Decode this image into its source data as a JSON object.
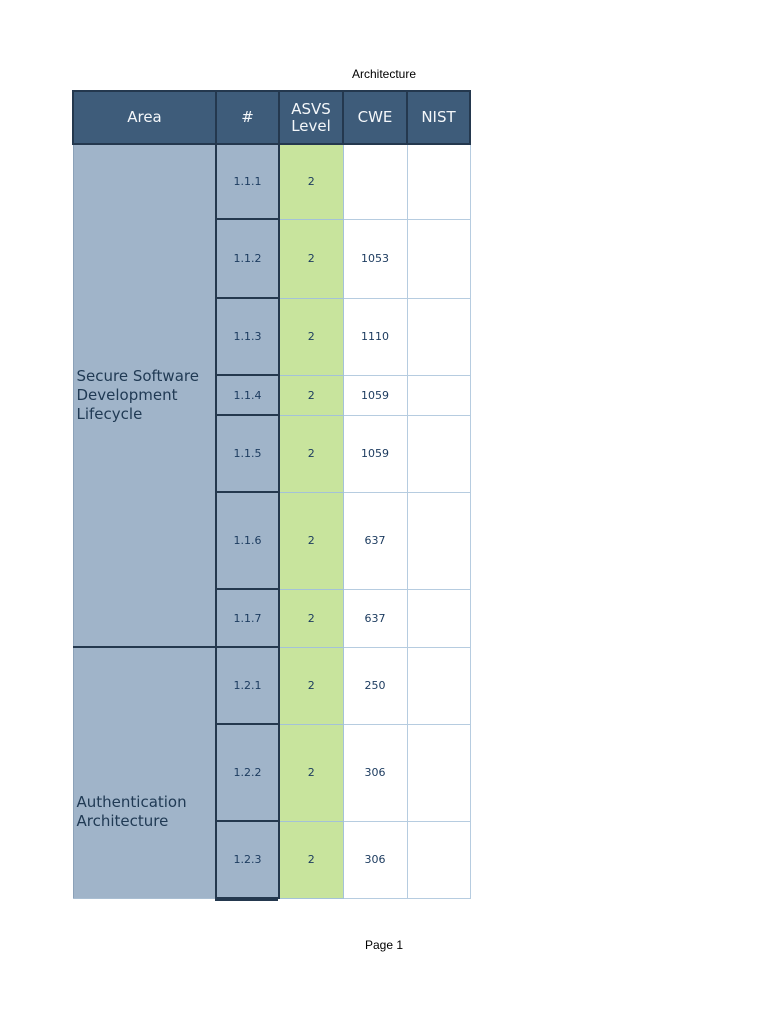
{
  "page": {
    "title": "Architecture",
    "footer": "Page 1"
  },
  "table": {
    "columns": [
      "Area",
      "#",
      "ASVS Level",
      "CWE",
      "NIST"
    ],
    "sections": [
      {
        "area": "Secure Software Development Lifecycle",
        "rows": [
          {
            "num": "1.1.1",
            "asvs_level": "2",
            "cwe": "",
            "nist": ""
          },
          {
            "num": "1.1.2",
            "asvs_level": "2",
            "cwe": "1053",
            "nist": ""
          },
          {
            "num": "1.1.3",
            "asvs_level": "2",
            "cwe": "1110",
            "nist": ""
          },
          {
            "num": "1.1.4",
            "asvs_level": "2",
            "cwe": "1059",
            "nist": ""
          },
          {
            "num": "1.1.5",
            "asvs_level": "2",
            "cwe": "1059",
            "nist": ""
          },
          {
            "num": "1.1.6",
            "asvs_level": "2",
            "cwe": "637",
            "nist": ""
          },
          {
            "num": "1.1.7",
            "asvs_level": "2",
            "cwe": "637",
            "nist": ""
          }
        ]
      },
      {
        "area": "Authentication Architecture",
        "rows": [
          {
            "num": "1.2.1",
            "asvs_level": "2",
            "cwe": "250",
            "nist": ""
          },
          {
            "num": "1.2.2",
            "asvs_level": "2",
            "cwe": "306",
            "nist": ""
          },
          {
            "num": "1.2.3",
            "asvs_level": "2",
            "cwe": "306",
            "nist": ""
          }
        ]
      }
    ],
    "colors": {
      "header_bg": "#3e5c7a",
      "header_text": "#f4f7fa",
      "dark_border": "#24384e",
      "area_bg": "#a0b4c9",
      "asvs_level_bg": "#c8e49d",
      "light_border": "#b6cce0",
      "value_text": "#1b3a5e"
    }
  }
}
